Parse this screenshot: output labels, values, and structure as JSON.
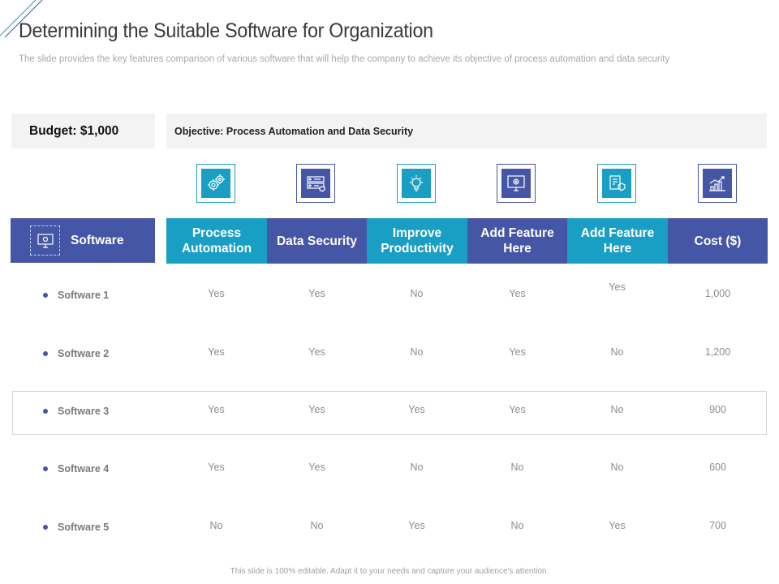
{
  "slide": {
    "title": "Determining the Suitable Software for Organization",
    "subtitle": "The slide provides the key features comparison of various software that will help the company to achieve its objective of process automation and data security",
    "budget": "Budget: $1,000",
    "objective": "Objective: Process Automation and Data Security",
    "footer": "This slide is 100% editable. Adapt it to your needs and capture your audience's attention."
  },
  "colors": {
    "teal": "#1a9fc4",
    "blue": "#4656a6"
  },
  "table": {
    "software_header": "Software",
    "columns": [
      {
        "label": "Process Automation",
        "color": "teal",
        "icon": "gears-icon"
      },
      {
        "label": "Data Security",
        "color": "blue",
        "icon": "secure-server-icon"
      },
      {
        "label": "Improve Productivity",
        "color": "teal",
        "icon": "lightbulb-icon"
      },
      {
        "label": "Add Feature Here",
        "color": "blue",
        "icon": "monitor-gear-icon"
      },
      {
        "label": "Add Feature Here",
        "color": "teal",
        "icon": "document-shield-icon"
      },
      {
        "label": "Cost ($)",
        "color": "blue",
        "icon": "growth-chart-icon"
      }
    ],
    "rows": [
      {
        "name": "Software 1",
        "values": [
          "Yes",
          "Yes",
          "No",
          "Yes",
          "Yes",
          "1,000"
        ]
      },
      {
        "name": "Software 2",
        "values": [
          "Yes",
          "Yes",
          "No",
          "Yes",
          "No",
          "1,200"
        ]
      },
      {
        "name": "Software 3",
        "values": [
          "Yes",
          "Yes",
          "Yes",
          "Yes",
          "No",
          "900"
        ]
      },
      {
        "name": "Software 4",
        "values": [
          "Yes",
          "Yes",
          "No",
          "No",
          "No",
          "600"
        ]
      },
      {
        "name": "Software 5",
        "values": [
          "No",
          "No",
          "Yes",
          "No",
          "Yes",
          "700"
        ]
      }
    ]
  }
}
